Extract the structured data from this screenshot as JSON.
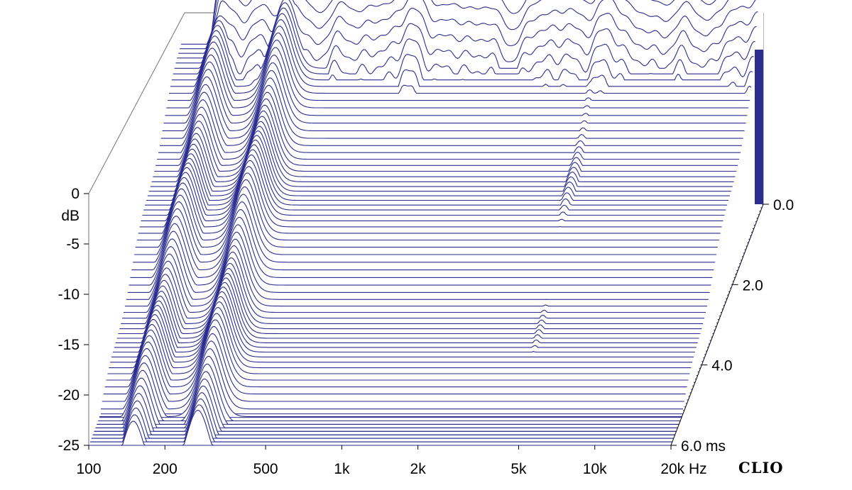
{
  "chart_data": {
    "type": "waterfall",
    "xlabel_unit": "Hz",
    "ylabel": "dB",
    "zlabel_unit": "ms",
    "brand": "CLIO",
    "x_scale": "log",
    "xlim": [
      100,
      20000
    ],
    "ylim": [
      -25,
      0
    ],
    "zlim": [
      0.0,
      6.0
    ],
    "x_ticks": [
      {
        "value": 100,
        "label": "100"
      },
      {
        "value": 200,
        "label": "200"
      },
      {
        "value": 500,
        "label": "500"
      },
      {
        "value": 1000,
        "label": "1k"
      },
      {
        "value": 2000,
        "label": "2k"
      },
      {
        "value": 5000,
        "label": "5k"
      },
      {
        "value": 10000,
        "label": "10k"
      },
      {
        "value": 20000,
        "label": "20k"
      }
    ],
    "y_ticks": [
      {
        "value": 0,
        "label": "0"
      },
      {
        "value": -5,
        "label": "-5"
      },
      {
        "value": -10,
        "label": "-10"
      },
      {
        "value": -15,
        "label": "-15"
      },
      {
        "value": -20,
        "label": "-20"
      },
      {
        "value": -25,
        "label": "-25"
      }
    ],
    "z_ticks": [
      {
        "value": 0.0,
        "label": "0.0"
      },
      {
        "value": 2.0,
        "label": "2.0"
      },
      {
        "value": 4.0,
        "label": "4.0"
      },
      {
        "value": 6.0,
        "label": "6.0"
      }
    ],
    "colors": {
      "trace": "#2b2d8f",
      "fill": "#ffffff",
      "frame": "#888888"
    },
    "slice_count": 70,
    "resonances": [
      {
        "freq_hz": 150,
        "level_db": -4,
        "decay_ms": 6.0
      },
      {
        "freq_hz": 270,
        "level_db": -3,
        "decay_ms": 6.0
      },
      {
        "freq_hz": 560,
        "level_db": -8,
        "decay_ms": 4.5
      },
      {
        "freq_hz": 800,
        "level_db": -12,
        "decay_ms": 3.0
      },
      {
        "freq_hz": 1300,
        "level_db": -16,
        "decay_ms": 2.5
      },
      {
        "freq_hz": 4600,
        "level_db": -8,
        "decay_ms": 5.5
      },
      {
        "freq_hz": 5200,
        "level_db": -9,
        "decay_ms": 4.5
      }
    ]
  }
}
